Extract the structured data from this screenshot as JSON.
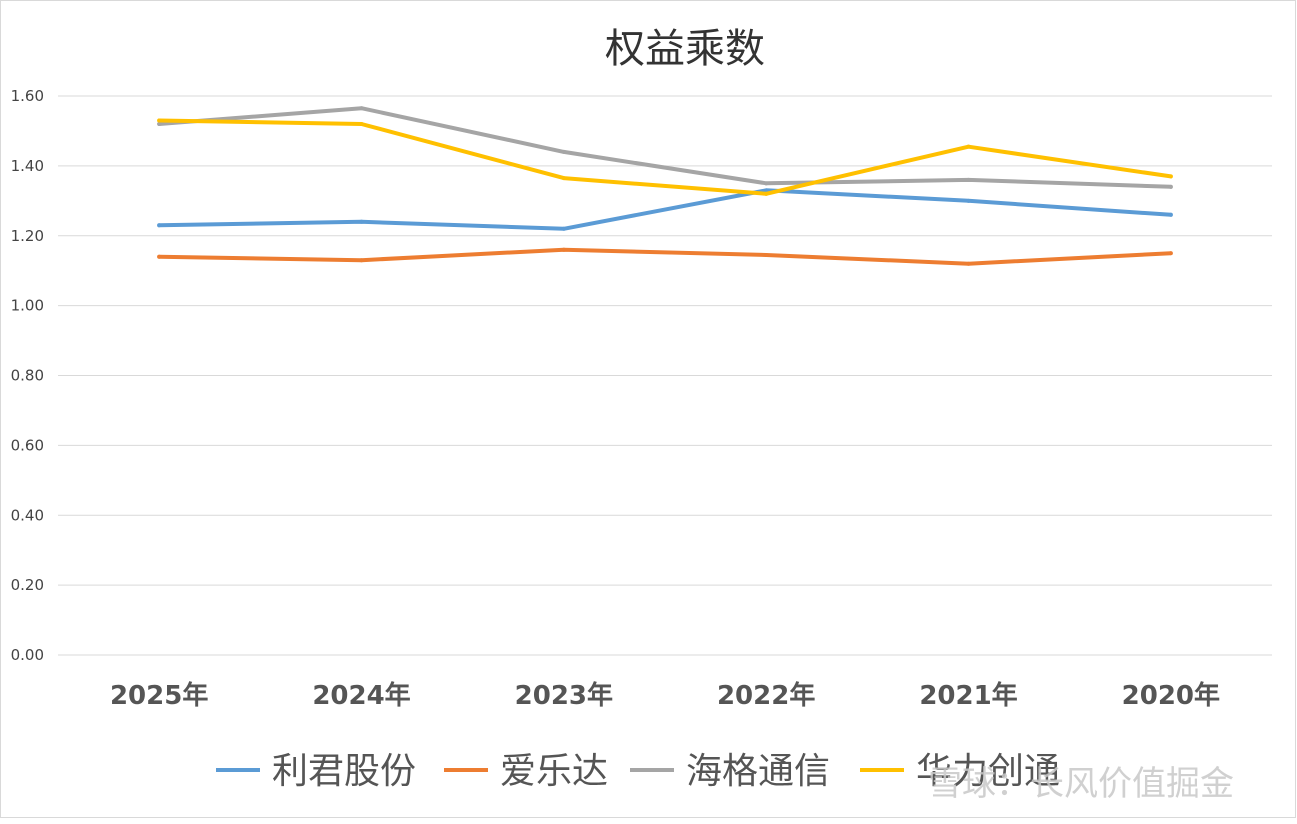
{
  "chart_data": {
    "type": "line",
    "title": "权益乘数",
    "categories": [
      "2025年",
      "2024年",
      "2023年",
      "2022年",
      "2021年",
      "2020年"
    ],
    "ylim": [
      0,
      1.6
    ],
    "yticks": [
      "0.00",
      "0.20",
      "0.40",
      "0.60",
      "0.80",
      "1.00",
      "1.20",
      "1.40",
      "1.60"
    ],
    "grid": true,
    "legend_position": "bottom",
    "series": [
      {
        "name": "利君股份",
        "color": "#5B9BD5",
        "values": [
          1.23,
          1.24,
          1.22,
          1.33,
          1.3,
          1.26
        ]
      },
      {
        "name": "爱乐达",
        "color": "#ED7D31",
        "values": [
          1.14,
          1.13,
          1.16,
          1.145,
          1.12,
          1.15
        ]
      },
      {
        "name": "海格通信",
        "color": "#A5A5A5",
        "values": [
          1.52,
          1.565,
          1.44,
          1.35,
          1.36,
          1.34
        ]
      },
      {
        "name": "华力创通",
        "color": "#FFC000",
        "values": [
          1.53,
          1.52,
          1.365,
          1.32,
          1.455,
          1.37
        ]
      }
    ]
  },
  "watermark": {
    "text": "雪球：长风价值掘金"
  }
}
